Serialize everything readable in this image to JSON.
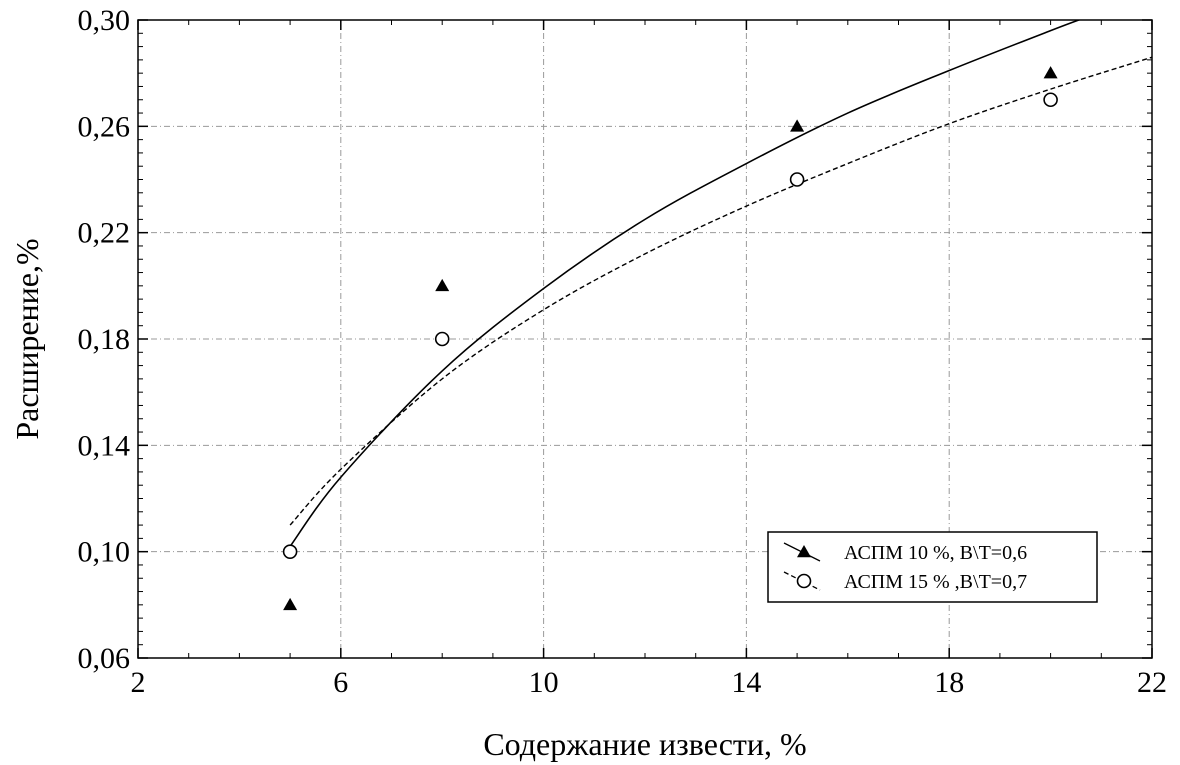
{
  "chart_data": {
    "type": "scatter",
    "title": "",
    "xlabel": "Содержание извести, %",
    "ylabel": "Расширение,%",
    "xlim": [
      2,
      22
    ],
    "ylim": [
      0.06,
      0.3
    ],
    "x_ticks": [
      2,
      6,
      10,
      14,
      18,
      22
    ],
    "x_tick_labels": [
      "2",
      "6",
      "10",
      "14",
      "18",
      "22"
    ],
    "y_ticks": [
      0.06,
      0.1,
      0.14,
      0.18,
      0.22,
      0.26,
      0.3
    ],
    "y_tick_labels": [
      "0,06",
      "0,10",
      "0,14",
      "0,18",
      "0,22",
      "0,26",
      "0,30"
    ],
    "grid": true,
    "legend_position": "lower-right",
    "series": [
      {
        "name": "АСПМ 10 %, В\\Т=0,6",
        "marker": "filled-triangle",
        "line": "solid",
        "color": "#000000",
        "points": [
          {
            "x": 5,
            "y": 0.08
          },
          {
            "x": 8,
            "y": 0.2
          },
          {
            "x": 15,
            "y": 0.26
          },
          {
            "x": 20,
            "y": 0.28
          }
        ],
        "fit_curve": [
          {
            "x": 5.0,
            "y": 0.102
          },
          {
            "x": 6.0,
            "y": 0.128
          },
          {
            "x": 8.0,
            "y": 0.168
          },
          {
            "x": 10.0,
            "y": 0.199
          },
          {
            "x": 12.0,
            "y": 0.225
          },
          {
            "x": 14.0,
            "y": 0.246
          },
          {
            "x": 16.0,
            "y": 0.265
          },
          {
            "x": 18.0,
            "y": 0.281
          },
          {
            "x": 20.0,
            "y": 0.296
          },
          {
            "x": 20.7,
            "y": 0.301
          }
        ]
      },
      {
        "name": "АСПМ 15 % ,В\\Т=0,7",
        "marker": "open-circle",
        "line": "dashed",
        "color": "#000000",
        "points": [
          {
            "x": 5,
            "y": 0.1
          },
          {
            "x": 8,
            "y": 0.18
          },
          {
            "x": 15,
            "y": 0.24
          },
          {
            "x": 20,
            "y": 0.27
          }
        ],
        "fit_curve": [
          {
            "x": 5.0,
            "y": 0.11
          },
          {
            "x": 6.0,
            "y": 0.131
          },
          {
            "x": 8.0,
            "y": 0.165
          },
          {
            "x": 10.0,
            "y": 0.191
          },
          {
            "x": 12.0,
            "y": 0.212
          },
          {
            "x": 14.0,
            "y": 0.23
          },
          {
            "x": 16.0,
            "y": 0.246
          },
          {
            "x": 18.0,
            "y": 0.261
          },
          {
            "x": 20.0,
            "y": 0.274
          },
          {
            "x": 22.0,
            "y": 0.286
          }
        ]
      }
    ]
  }
}
